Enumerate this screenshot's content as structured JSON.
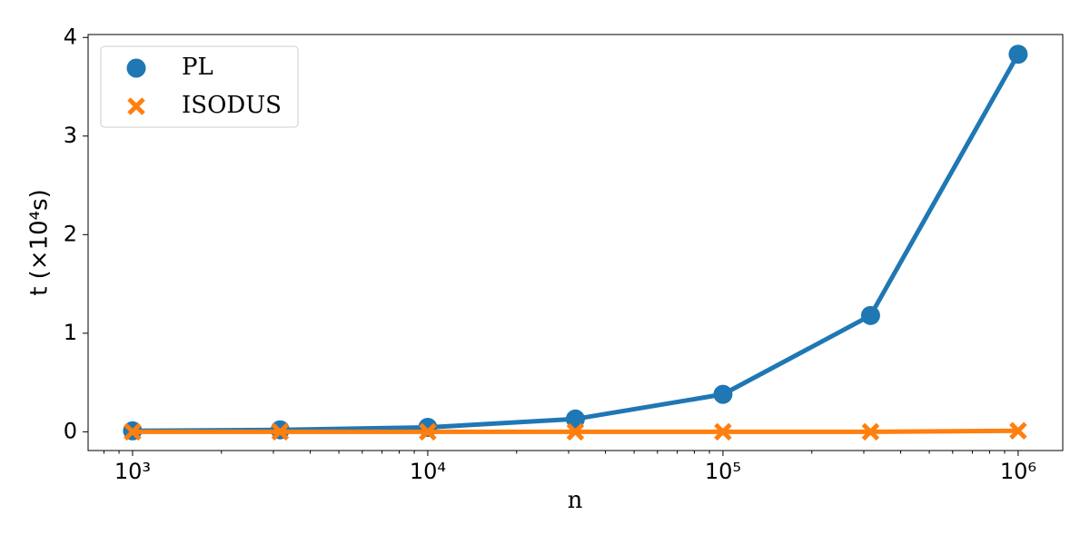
{
  "chart_data": {
    "type": "line",
    "x_label": "n",
    "y_label": "t (×10⁴s)",
    "x": [
      1000,
      3162,
      10000,
      31623,
      100000,
      316228,
      1000000
    ],
    "series": [
      {
        "name": "PL",
        "color": "#1f77b4",
        "marker": "circle",
        "values": [
          0.01,
          0.02,
          0.045,
          0.13,
          0.38,
          1.18,
          3.83
        ]
      },
      {
        "name": "ISODUS",
        "color": "#ff7f0e",
        "marker": "x",
        "values": [
          0,
          0,
          0,
          0,
          0,
          0,
          0.01
        ]
      }
    ],
    "xscale": "log",
    "xlim": [
      707,
      1416000
    ],
    "xticks": [
      {
        "value": 1000,
        "label": "10³"
      },
      {
        "value": 10000,
        "label": "10⁴"
      },
      {
        "value": 100000,
        "label": "10⁵"
      },
      {
        "value": 1000000,
        "label": "10⁶"
      }
    ],
    "xminorticks": [
      800,
      900,
      2000,
      3000,
      4000,
      5000,
      6000,
      7000,
      8000,
      9000,
      20000,
      30000,
      40000,
      50000,
      60000,
      70000,
      80000,
      90000,
      200000,
      300000,
      400000,
      500000,
      600000,
      700000,
      800000,
      900000
    ],
    "ylim": [
      -0.19,
      4.03
    ],
    "yticks": [
      0,
      1,
      2,
      3,
      4
    ],
    "legend": "upper left",
    "grid": false
  }
}
